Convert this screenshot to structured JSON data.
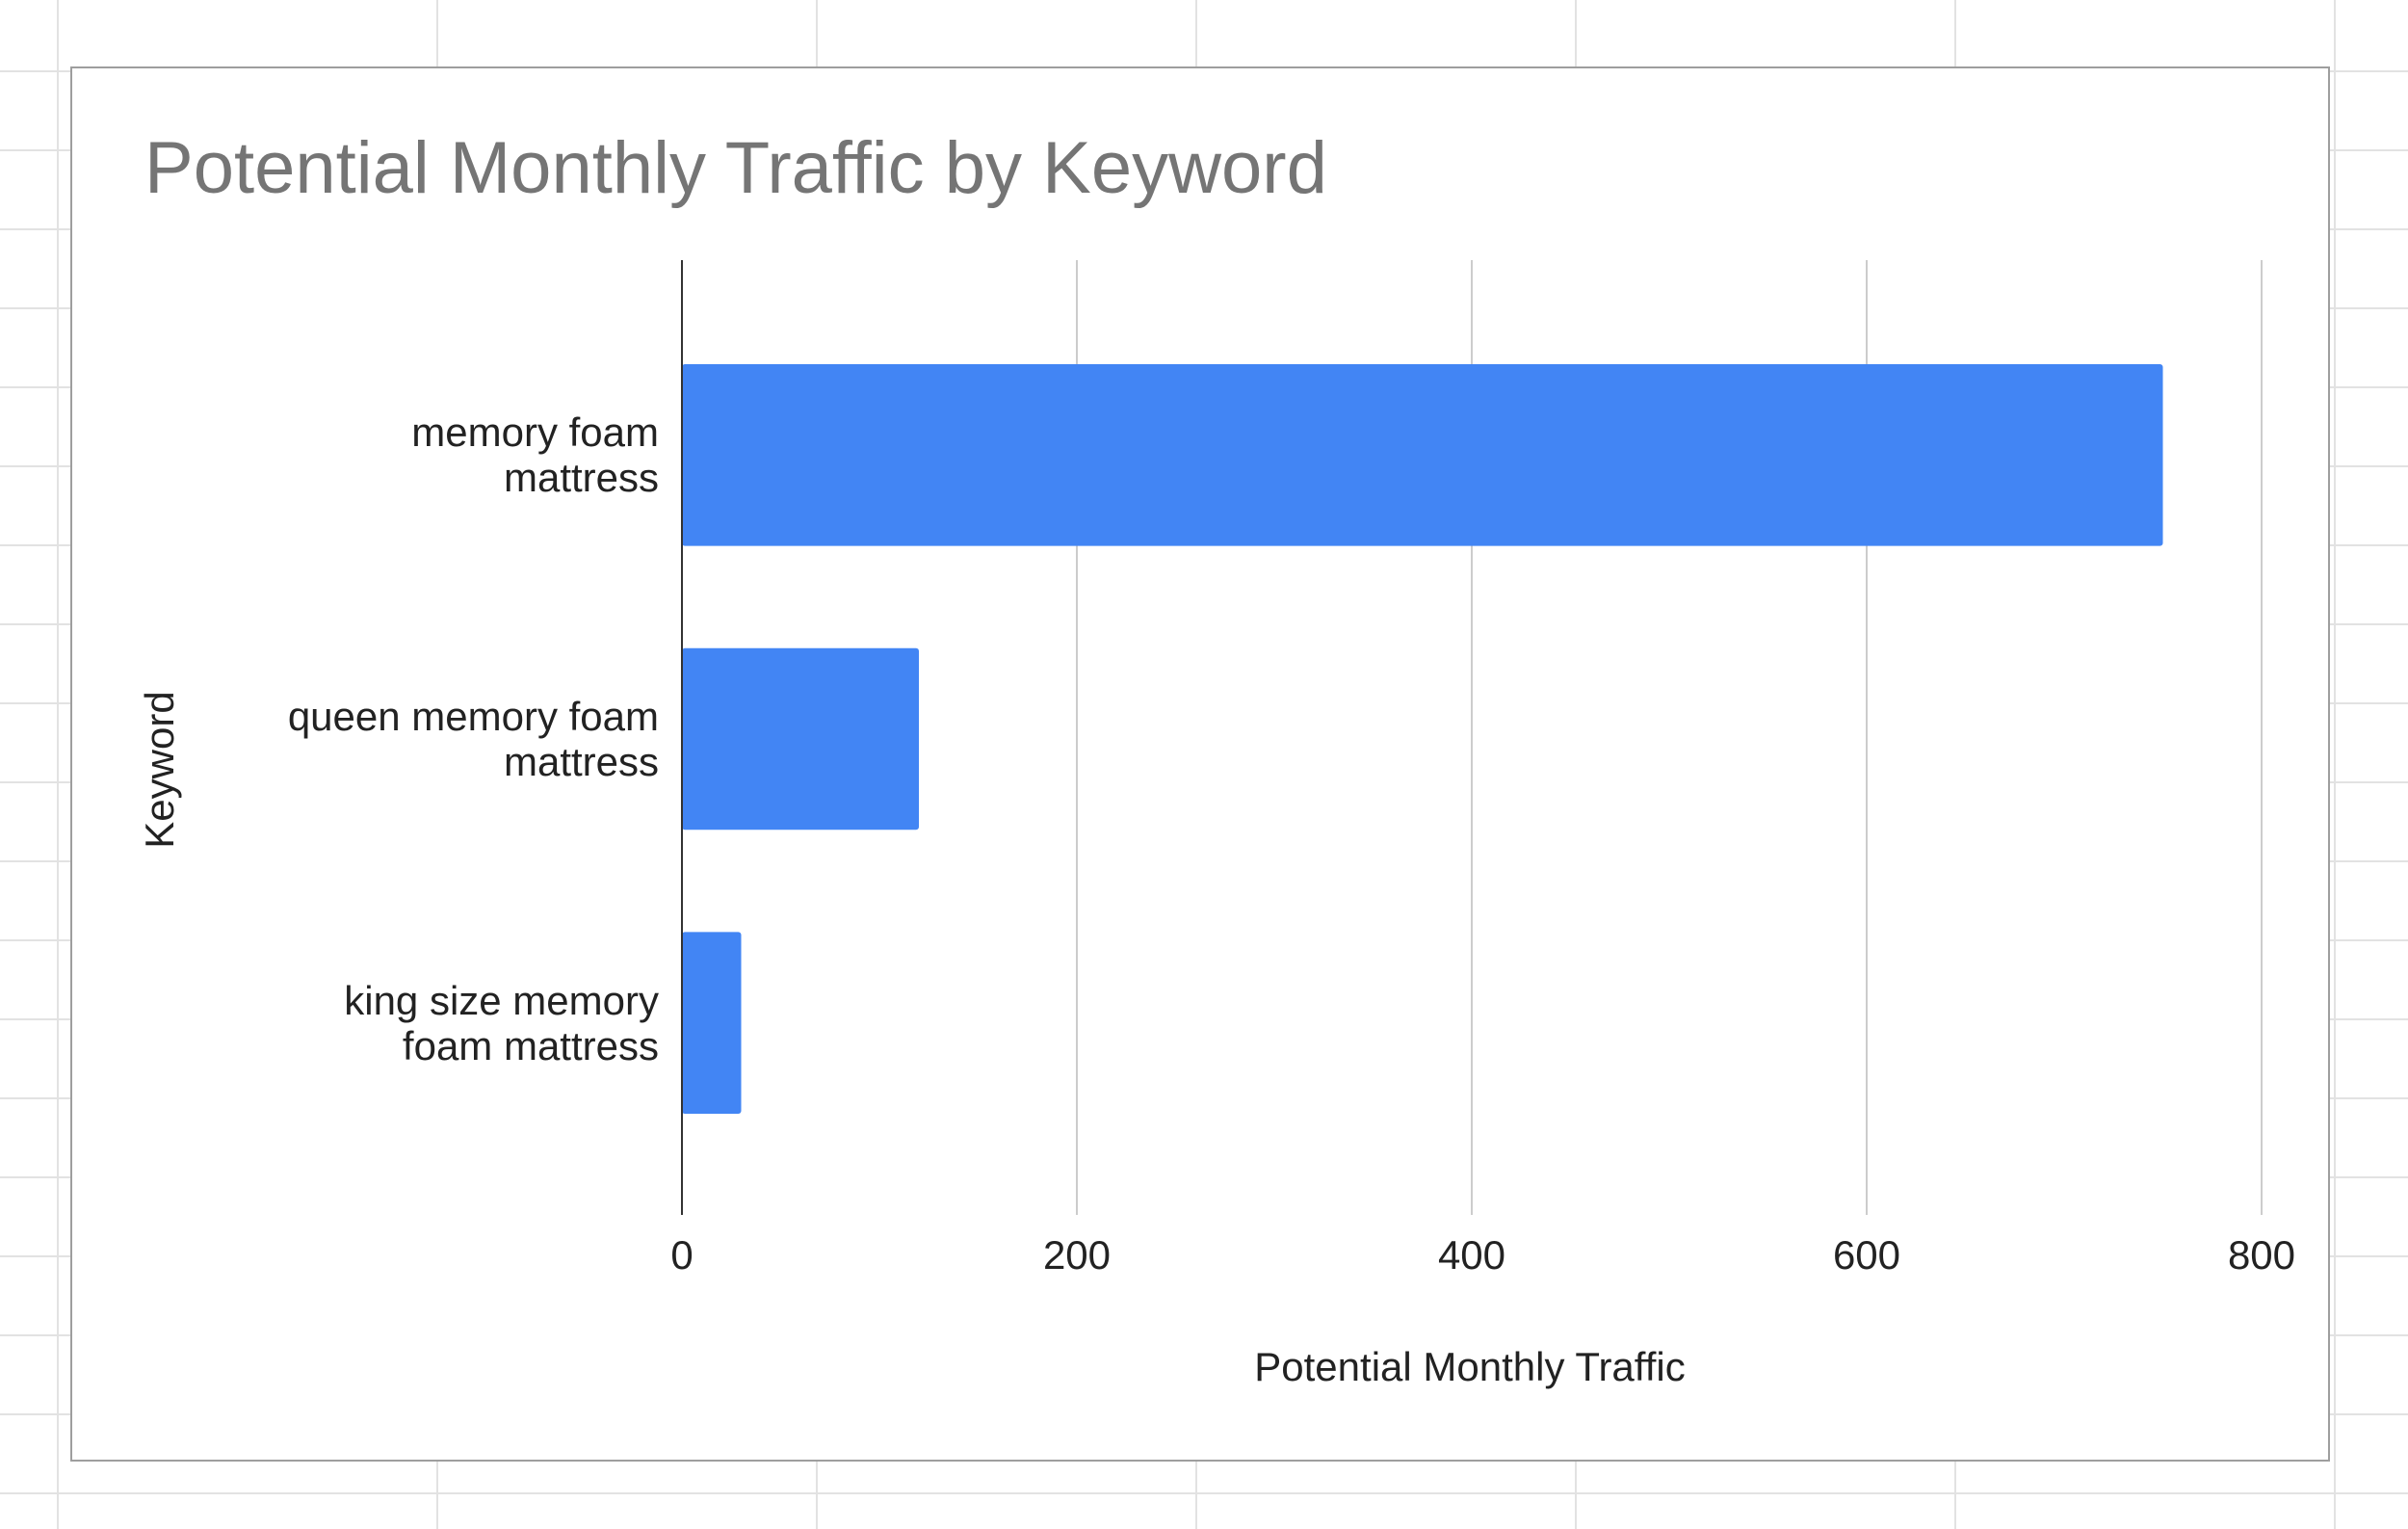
{
  "chart_data": {
    "type": "bar",
    "orientation": "horizontal",
    "title": "Potential Monthly Traffic by Keyword",
    "x_label": "Potential Monthly Traffic",
    "y_label": "Keyword",
    "categories": [
      "memory foam mattress",
      "queen memory foam mattress",
      "king size memory foam mattress"
    ],
    "values": [
      750,
      120,
      30
    ],
    "color": "#4285f4",
    "xlim": [
      0,
      800
    ],
    "xticks": [
      0,
      200,
      400,
      600,
      800
    ],
    "grid": true
  }
}
